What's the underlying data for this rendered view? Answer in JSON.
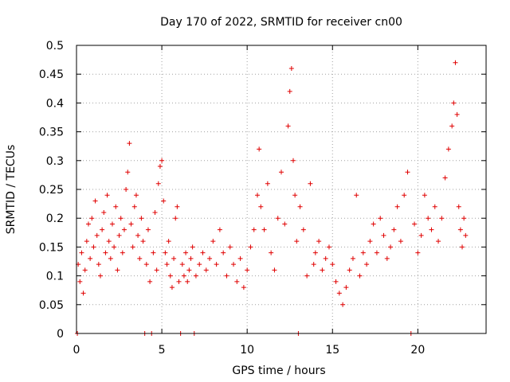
{
  "chart_data": {
    "type": "scatter",
    "title": "Day 170 of 2022, SRMTID for receiver cn00",
    "xlabel": "GPS time / hours",
    "ylabel": "SRMTID / TECUs",
    "xlim": [
      0,
      24
    ],
    "ylim": [
      0,
      0.5
    ],
    "xticks": [
      0,
      5,
      10,
      15,
      20
    ],
    "xtick_labels": [
      "0",
      "5",
      "10",
      "15",
      "20"
    ],
    "yticks": [
      0,
      0.05,
      0.1,
      0.15,
      0.2,
      0.25,
      0.3,
      0.35,
      0.4,
      0.45,
      0.5
    ],
    "ytick_labels": [
      "0",
      "0.05",
      "0.1",
      "0.15",
      "0.2",
      "0.25",
      "0.3",
      "0.35",
      "0.4",
      "0.45",
      "0.5"
    ],
    "grid": true,
    "marker": "plus",
    "color": "#e00000",
    "series": [
      {
        "name": "SRMTID",
        "points": [
          [
            0.05,
            0.0
          ],
          [
            0.1,
            0.12
          ],
          [
            0.2,
            0.09
          ],
          [
            0.3,
            0.14
          ],
          [
            0.4,
            0.07
          ],
          [
            0.5,
            0.11
          ],
          [
            0.6,
            0.16
          ],
          [
            0.7,
            0.19
          ],
          [
            0.8,
            0.13
          ],
          [
            0.9,
            0.2
          ],
          [
            1.0,
            0.15
          ],
          [
            1.1,
            0.23
          ],
          [
            1.2,
            0.17
          ],
          [
            1.3,
            0.12
          ],
          [
            1.4,
            0.1
          ],
          [
            1.5,
            0.18
          ],
          [
            1.6,
            0.21
          ],
          [
            1.7,
            0.14
          ],
          [
            1.8,
            0.24
          ],
          [
            1.9,
            0.16
          ],
          [
            2.0,
            0.13
          ],
          [
            2.1,
            0.19
          ],
          [
            2.2,
            0.15
          ],
          [
            2.3,
            0.22
          ],
          [
            2.4,
            0.11
          ],
          [
            2.5,
            0.17
          ],
          [
            2.6,
            0.2
          ],
          [
            2.7,
            0.14
          ],
          [
            2.8,
            0.18
          ],
          [
            2.9,
            0.25
          ],
          [
            3.0,
            0.28
          ],
          [
            3.1,
            0.33
          ],
          [
            3.2,
            0.19
          ],
          [
            3.3,
            0.15
          ],
          [
            3.4,
            0.22
          ],
          [
            3.5,
            0.24
          ],
          [
            3.6,
            0.17
          ],
          [
            3.7,
            0.13
          ],
          [
            3.8,
            0.2
          ],
          [
            3.9,
            0.16
          ],
          [
            4.0,
            0.0
          ],
          [
            4.1,
            0.12
          ],
          [
            4.2,
            0.18
          ],
          [
            4.3,
            0.09
          ],
          [
            4.4,
            0.0
          ],
          [
            4.5,
            0.14
          ],
          [
            4.6,
            0.21
          ],
          [
            4.7,
            0.11
          ],
          [
            4.8,
            0.26
          ],
          [
            4.9,
            0.29
          ],
          [
            5.0,
            0.3
          ],
          [
            5.1,
            0.23
          ],
          [
            5.2,
            0.14
          ],
          [
            5.3,
            0.12
          ],
          [
            5.4,
            0.16
          ],
          [
            5.5,
            0.1
          ],
          [
            5.6,
            0.08
          ],
          [
            5.7,
            0.13
          ],
          [
            5.8,
            0.2
          ],
          [
            5.9,
            0.22
          ],
          [
            6.0,
            0.09
          ],
          [
            6.1,
            0.0
          ],
          [
            6.2,
            0.12
          ],
          [
            6.3,
            0.1
          ],
          [
            6.4,
            0.14
          ],
          [
            6.5,
            0.09
          ],
          [
            6.6,
            0.11
          ],
          [
            6.7,
            0.13
          ],
          [
            6.8,
            0.15
          ],
          [
            6.9,
            0.0
          ],
          [
            7.0,
            0.1
          ],
          [
            7.2,
            0.12
          ],
          [
            7.4,
            0.14
          ],
          [
            7.6,
            0.11
          ],
          [
            7.8,
            0.13
          ],
          [
            8.0,
            0.16
          ],
          [
            8.2,
            0.12
          ],
          [
            8.4,
            0.18
          ],
          [
            8.6,
            0.14
          ],
          [
            8.8,
            0.1
          ],
          [
            9.0,
            0.15
          ],
          [
            9.2,
            0.12
          ],
          [
            9.4,
            0.09
          ],
          [
            9.6,
            0.13
          ],
          [
            9.8,
            0.08
          ],
          [
            10.0,
            0.11
          ],
          [
            10.2,
            0.15
          ],
          [
            10.4,
            0.18
          ],
          [
            10.6,
            0.24
          ],
          [
            10.7,
            0.32
          ],
          [
            10.8,
            0.22
          ],
          [
            11.0,
            0.18
          ],
          [
            11.2,
            0.26
          ],
          [
            11.4,
            0.14
          ],
          [
            11.6,
            0.11
          ],
          [
            11.8,
            0.2
          ],
          [
            12.0,
            0.28
          ],
          [
            12.2,
            0.19
          ],
          [
            12.4,
            0.36
          ],
          [
            12.5,
            0.42
          ],
          [
            12.6,
            0.46
          ],
          [
            12.7,
            0.3
          ],
          [
            12.8,
            0.24
          ],
          [
            12.9,
            0.16
          ],
          [
            13.0,
            0.0
          ],
          [
            13.1,
            0.22
          ],
          [
            13.3,
            0.18
          ],
          [
            13.5,
            0.1
          ],
          [
            13.7,
            0.26
          ],
          [
            13.9,
            0.12
          ],
          [
            14.0,
            0.14
          ],
          [
            14.2,
            0.16
          ],
          [
            14.4,
            0.11
          ],
          [
            14.6,
            0.13
          ],
          [
            14.8,
            0.15
          ],
          [
            15.0,
            0.12
          ],
          [
            15.2,
            0.09
          ],
          [
            15.4,
            0.07
          ],
          [
            15.6,
            0.05
          ],
          [
            15.8,
            0.08
          ],
          [
            16.0,
            0.11
          ],
          [
            16.2,
            0.13
          ],
          [
            16.4,
            0.24
          ],
          [
            16.6,
            0.1
          ],
          [
            16.8,
            0.14
          ],
          [
            17.0,
            0.12
          ],
          [
            17.2,
            0.16
          ],
          [
            17.4,
            0.19
          ],
          [
            17.6,
            0.14
          ],
          [
            17.8,
            0.2
          ],
          [
            18.0,
            0.17
          ],
          [
            18.2,
            0.13
          ],
          [
            18.4,
            0.15
          ],
          [
            18.6,
            0.18
          ],
          [
            18.8,
            0.22
          ],
          [
            19.0,
            0.16
          ],
          [
            19.2,
            0.24
          ],
          [
            19.4,
            0.28
          ],
          [
            19.6,
            0.0
          ],
          [
            19.8,
            0.19
          ],
          [
            20.0,
            0.14
          ],
          [
            20.2,
            0.17
          ],
          [
            20.4,
            0.24
          ],
          [
            20.6,
            0.2
          ],
          [
            20.8,
            0.18
          ],
          [
            21.0,
            0.22
          ],
          [
            21.2,
            0.16
          ],
          [
            21.4,
            0.2
          ],
          [
            21.6,
            0.27
          ],
          [
            21.8,
            0.32
          ],
          [
            22.0,
            0.36
          ],
          [
            22.1,
            0.4
          ],
          [
            22.2,
            0.47
          ],
          [
            22.3,
            0.38
          ],
          [
            22.4,
            0.22
          ],
          [
            22.5,
            0.18
          ],
          [
            22.6,
            0.15
          ],
          [
            22.7,
            0.2
          ],
          [
            22.8,
            0.17
          ]
        ]
      }
    ]
  }
}
